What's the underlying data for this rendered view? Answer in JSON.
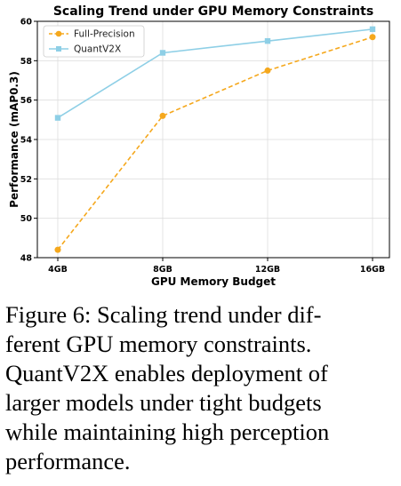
{
  "chart_data": {
    "type": "line",
    "title": "Scaling Trend under GPU Memory Constraints",
    "xlabel": "GPU Memory Budget",
    "ylabel": "Performance (mAP0.3)",
    "categories": [
      "4GB",
      "8GB",
      "12GB",
      "16GB"
    ],
    "ylim": [
      48,
      60
    ],
    "yticks": [
      48,
      50,
      52,
      54,
      56,
      58,
      60
    ],
    "grid": true,
    "legend_position": "top-left",
    "series": [
      {
        "name": "Full-Precision",
        "values": [
          48.4,
          55.2,
          57.5,
          59.2
        ],
        "color": "#f5a81d",
        "marker": "circle",
        "line_style": "dashed"
      },
      {
        "name": "QuantV2X",
        "values": [
          55.1,
          58.4,
          59.0,
          59.6
        ],
        "color": "#8ecfe6",
        "marker": "square",
        "line_style": "solid"
      }
    ]
  },
  "caption": {
    "lines": [
      "Figure 6: Scaling trend under dif-",
      "ferent GPU memory constraints.",
      "QuantV2X enables deployment of",
      "larger models under tight budgets",
      "while maintaining high perception",
      "performance."
    ]
  }
}
